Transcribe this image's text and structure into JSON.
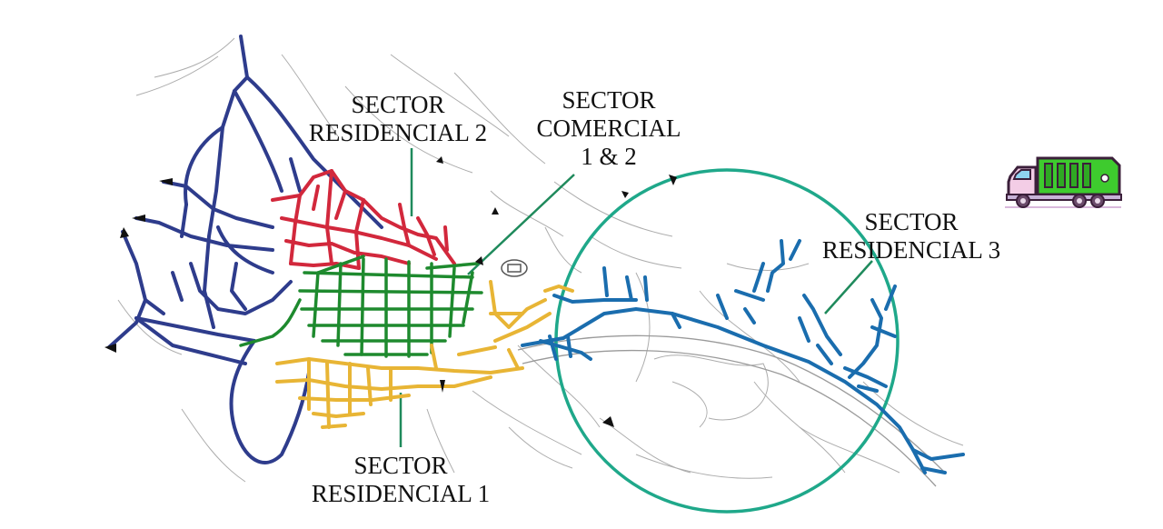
{
  "map": {
    "labels": {
      "residencial_2": {
        "line1": "SECTOR",
        "line2": "RESIDENCIAL 2"
      },
      "comercial": {
        "line1": "SECTOR",
        "line2": "COMERCIAL",
        "line3": "1 & 2"
      },
      "residencial_3": {
        "line1": "SECTOR",
        "line2": "RESIDENCIAL 3"
      },
      "residencial_1": {
        "line1": "SECTOR",
        "line2": "RESIDENCIAL 1"
      }
    },
    "colors": {
      "residencial_1": "#E8B535",
      "residencial_2": "#D2283C",
      "residencial_3": "#1A6DAE",
      "comercial": "#1E8A2E",
      "periphery": "#2E3C8C",
      "circle": "#1FA88A",
      "terrain": "#8A8A8A"
    },
    "icons": {
      "truck": "garbage-truck-icon",
      "direction_marker": "arrowhead-icon"
    }
  }
}
